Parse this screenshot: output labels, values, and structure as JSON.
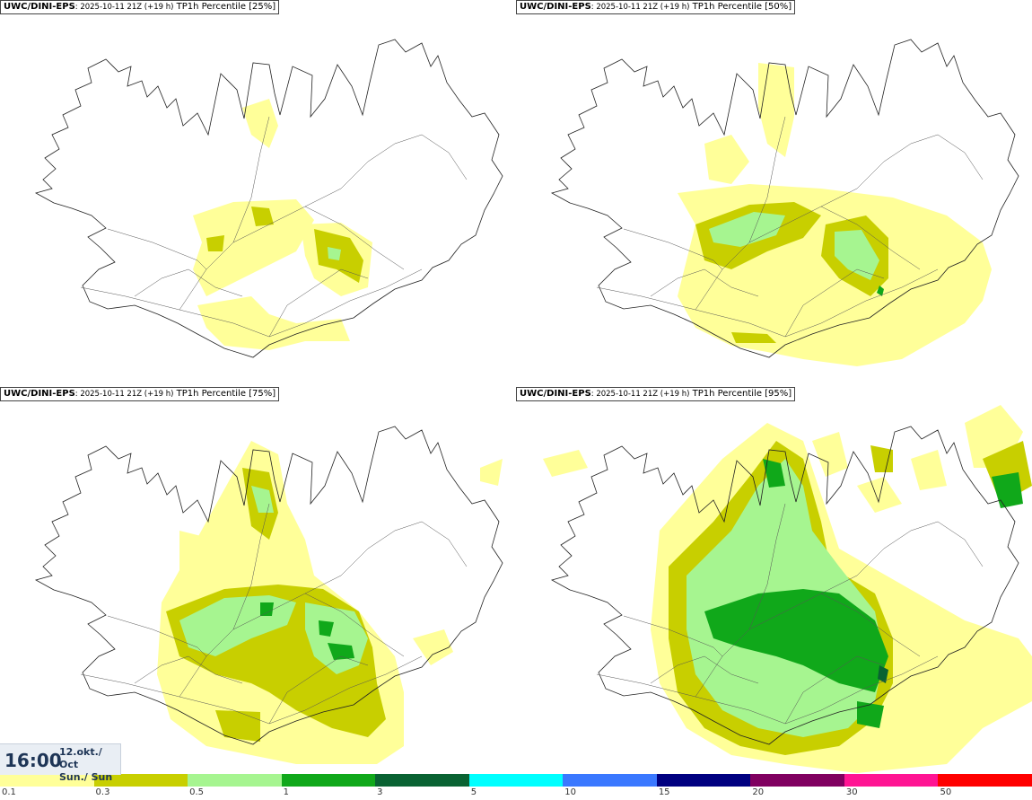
{
  "panels": [
    {
      "model": "UWC/DINI-EPS",
      "run": ": 2025-10-11 21Z (+19 h)",
      "product": " TP1h Percentile [25%]",
      "level": 1
    },
    {
      "model": "UWC/DINI-EPS",
      "run": ": 2025-10-11 21Z (+19 h)",
      "product": " TP1h Percentile [50%]",
      "level": 2
    },
    {
      "model": "UWC/DINI-EPS",
      "run": ": 2025-10-11 21Z (+19 h)",
      "product": " TP1h Percentile [75%]",
      "level": 3
    },
    {
      "model": "UWC/DINI-EPS",
      "run": ": 2025-10-11 21Z (+19 h)",
      "product": " TP1h Percentile [95%]",
      "level": 4
    }
  ],
  "valid_time": {
    "time": "16:00",
    "date_line1": "12.okt./ Oct",
    "date_line2": "Sun./ Sun"
  },
  "legend": {
    "labels": [
      "0.1",
      "0.3",
      "0.5",
      "1",
      "3",
      "5",
      "10",
      "15",
      "20",
      "30",
      "50"
    ],
    "colors": [
      "#ffff99",
      "#c8cf00",
      "#a6f590",
      "#10a81a",
      "#096232",
      "#00ffff",
      "#3a78ff",
      "#000080",
      "#800060",
      "#ff1493",
      "#ff0000"
    ]
  },
  "colors": {
    "light_yellow": "#ffff99",
    "olive": "#c8cf00",
    "light_green": "#a6f590",
    "green": "#10a81a",
    "dark_green": "#096232",
    "coastline": "#222222"
  }
}
